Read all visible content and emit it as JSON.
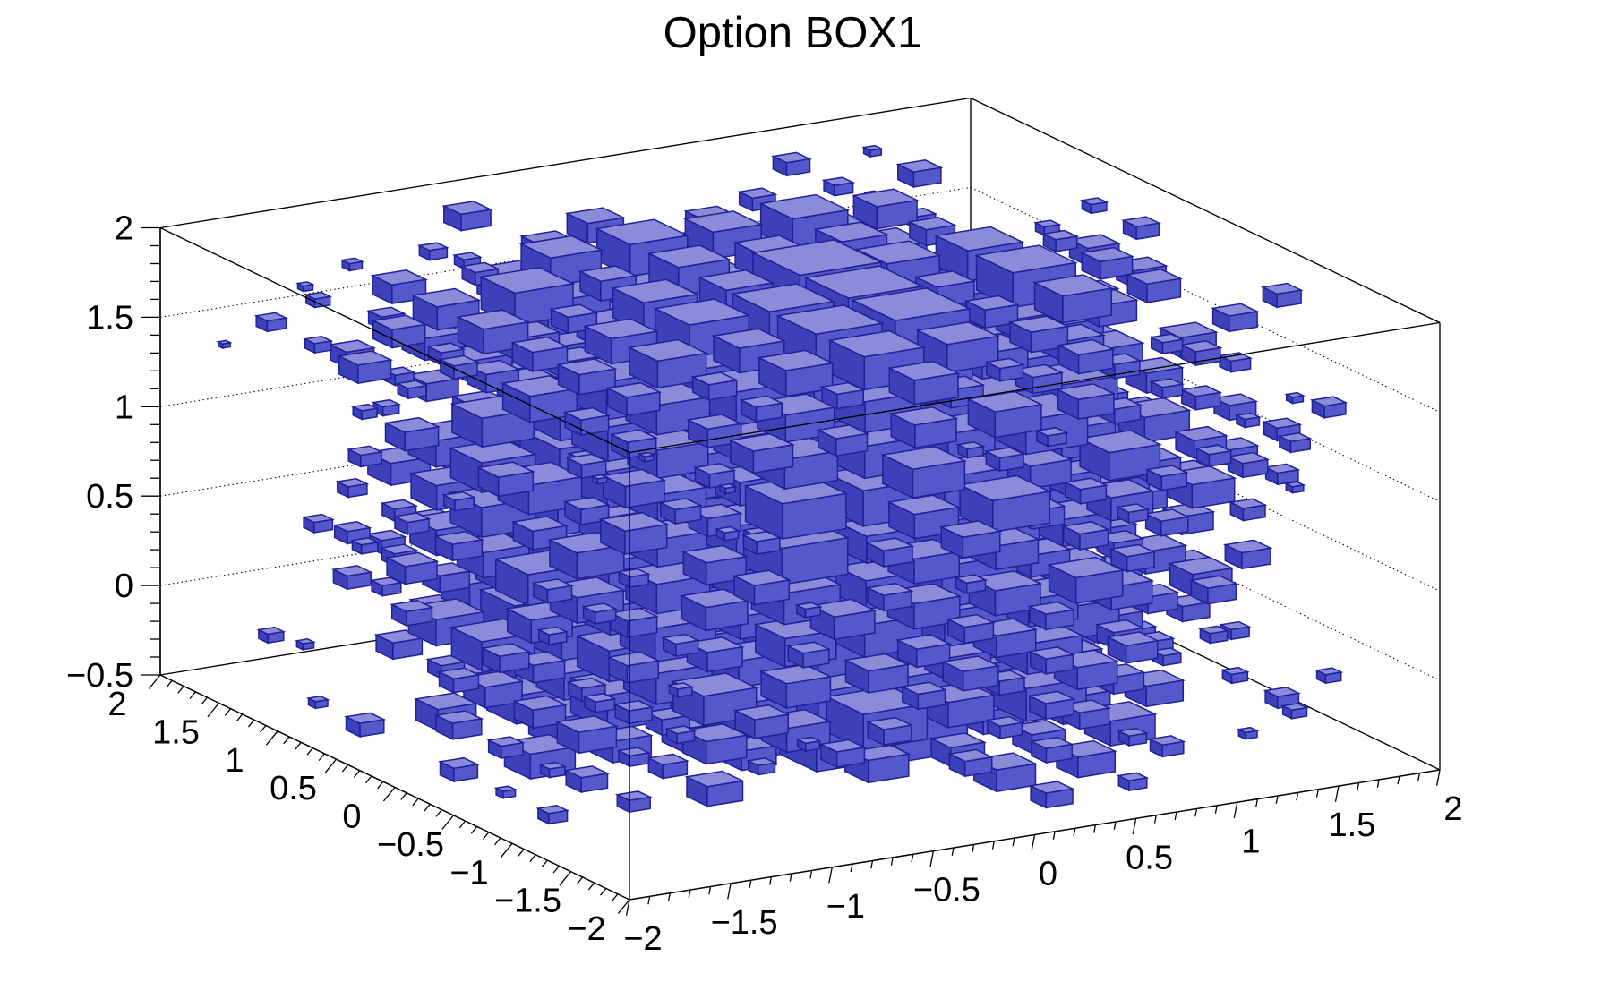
{
  "title": "Option BOX1",
  "chart_data": {
    "type": "3d-box-histogram",
    "render_option": "BOX1",
    "title": "Option BOX1",
    "description": "ROOT TH3 histogram drawn with option BOX1: blue 3D boxes on a 10x10x10 bin grid, box size proportional to bin content, densest/largest near the x-y centre, scattered small boxes at the periphery.",
    "x_axis": {
      "min": -2,
      "max": 2,
      "major_step": 0.5,
      "minor_step": 0.1,
      "labels": [
        "−2",
        "−1.5",
        "−1",
        "−0.5",
        "0",
        "0.5",
        "1",
        "1.5",
        "2"
      ]
    },
    "y_axis": {
      "min": -2,
      "max": 2,
      "major_step": 0.5,
      "minor_step": 0.1,
      "labels": [
        "−2",
        "−1.5",
        "−1",
        "−0.5",
        "0",
        "0.5",
        "1",
        "1.5",
        "2"
      ]
    },
    "z_axis": {
      "min": -0.5,
      "max": 2,
      "major_step": 0.5,
      "minor_step": 0.1,
      "labels": [
        "−0.5",
        "0",
        "0.5",
        "1",
        "1.5",
        "2"
      ],
      "gridlines": [
        0,
        0.5,
        1,
        1.5
      ]
    },
    "bins": {
      "nx": 10,
      "ny": 10,
      "nz": 10
    },
    "distribution": {
      "model": "gaussian-blob",
      "sigma_xy": 0.75,
      "z_mean": 0.85,
      "sigma_z": 1.0,
      "seed": 42
    },
    "legend": "none",
    "grid": "dotted z-levels on back walls",
    "colors": {
      "box_top": "#8a8cd9",
      "box_front": "#5558ca",
      "box_side": "#3d40b8",
      "box_edge": "#202099",
      "frame": "#000000",
      "grid_dots": "#000000",
      "text": "#000000",
      "background": "#ffffff"
    }
  }
}
